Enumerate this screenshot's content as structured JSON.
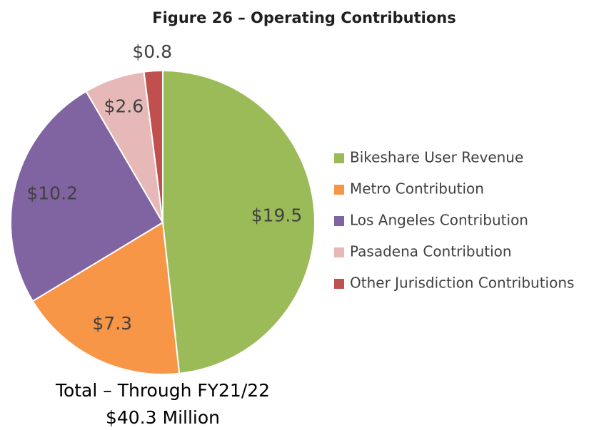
{
  "chart_data": {
    "type": "pie",
    "title": "Figure 26 – Operating Contributions",
    "categories": [
      "Bikeshare User Revenue",
      "Metro Contribution",
      "Los Angeles Contribution",
      "Pasadena Contribution",
      "Other Jurisdiction Contributions"
    ],
    "values": [
      19.5,
      7.3,
      10.2,
      2.6,
      0.8
    ],
    "value_labels": [
      "$19.5",
      "$7.3",
      "$10.2",
      "$2.6",
      "$0.8"
    ],
    "colors": [
      "#9bbb59",
      "#f79646",
      "#8064a2",
      "#e6b9b8",
      "#c0504d"
    ],
    "legend": "right",
    "annotations": [
      "Total – Through FY21/22",
      "$40.3 Million"
    ]
  }
}
